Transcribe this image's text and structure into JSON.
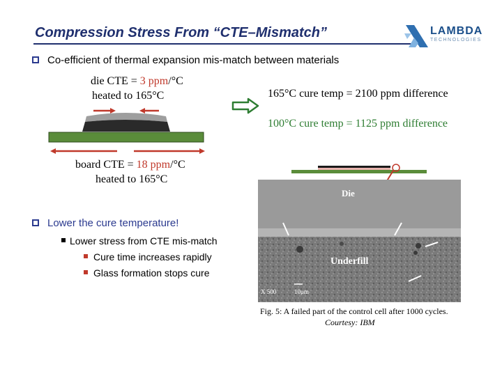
{
  "title": "Compression Stress From “CTE–Mismatch”",
  "logo": {
    "name": "LAMBDA",
    "tagline": "TECHNOLOGIES"
  },
  "bullets": {
    "first": "Co-efficient of thermal expansion mis-match between materials",
    "second": "Lower the cure temperature!"
  },
  "die": {
    "prefix": "die CTE = ",
    "value": "3 ppm",
    "suffix": "/°C",
    "heated": "heated to 165°C"
  },
  "board": {
    "prefix": "board CTE = ",
    "value": "18 ppm",
    "suffix": "/°C",
    "heated": "heated to 165°C"
  },
  "cure": {
    "line1": "165°C cure temp = 2100 ppm difference",
    "line2": "100°C cure temp = 1125 ppm difference"
  },
  "sub_bullets": {
    "main": "Lower stress from CTE mis-match",
    "items": [
      "Cure time increases rapidly",
      "Glass formation stops cure"
    ]
  },
  "micrograph": {
    "die_label": "Die",
    "underfill_label": "Underfill",
    "magnification": "X 500",
    "scale": "10μm"
  },
  "caption": "Fig. 5: A failed part of the control cell after 1000 cycles.",
  "courtesy": "Courtesy: IBM",
  "colors": {
    "title": "#1f2f6e",
    "red": "#c0392b",
    "green": "#2e7d32",
    "board": "#5a8c3a",
    "bullet": "#2b3a8f"
  },
  "icons": [
    "q-bullet-icon",
    "right-arrow-icon",
    "lambda-logo-icon"
  ]
}
